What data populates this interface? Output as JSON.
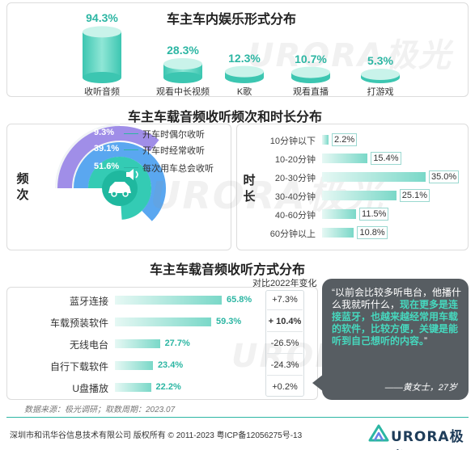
{
  "section1": {
    "title": "车主车内娱乐形式分布",
    "watermark": "URORA极光"
  },
  "section2": {
    "title": "车主车载音频收听频次和时长分布",
    "freq_label": "频次",
    "duration_label": "时长"
  },
  "section3": {
    "title": "车主车载音频收听方式分布",
    "compare_header": "对比2022年变化",
    "source": "数据来源：极光调研；取数周期：2023.07"
  },
  "quote": {
    "text_normal": "“以前会比较多听电台，他播什么我就听什么，",
    "text_bold": "现在更多是连接蓝牙，也越来越经常用车载的软件，比较方便，关键是能听到自己想听的内容。",
    "close": "”",
    "author": "——黄女士，27岁"
  },
  "footer": {
    "copyright": "深圳市和讯华谷信息技术有限公司 版权所有 © 2011-2023 粤ICP备12056275号-13",
    "logo": "URORA极光"
  },
  "colors": {
    "teal": "#2cb6a3",
    "teal_light": "#9ee5d9",
    "purple": "#a08ee8",
    "blue": "#5aa7f0",
    "green": "#34cbb4",
    "dark": "#575d62"
  },
  "chart_data": [
    {
      "type": "bar",
      "title": "车主车内娱乐形式分布",
      "categories": [
        "收听音频",
        "观看中长视频",
        "K歌",
        "观看直播",
        "打游戏"
      ],
      "values": [
        94.3,
        28.3,
        12.3,
        10.7,
        5.3
      ],
      "value_labels": [
        "94.3%",
        "28.3%",
        "12.3%",
        "10.7%",
        "5.3%"
      ],
      "ylim": [
        0,
        100
      ]
    },
    {
      "type": "pie",
      "title": "频次",
      "categories": [
        "开车时偶尔收听",
        "开车时经常收听",
        "每次用车总会收听"
      ],
      "values": [
        9.3,
        39.1,
        51.6
      ],
      "value_labels": [
        "9.3%",
        "39.1%",
        "51.6%"
      ]
    },
    {
      "type": "bar",
      "title": "时长",
      "categories": [
        "10分钟以下",
        "10-20分钟",
        "20-30分钟",
        "30-40分钟",
        "40-60分钟",
        "60分钟以上"
      ],
      "values": [
        2.2,
        15.4,
        35.0,
        25.1,
        11.5,
        10.8
      ],
      "value_labels": [
        "2.2%",
        "15.4%",
        "35.0%",
        "25.1%",
        "11.5%",
        "10.8%"
      ],
      "xlim": [
        0,
        35
      ]
    },
    {
      "type": "bar",
      "title": "车主车载音频收听方式分布",
      "categories": [
        "蓝牙连接",
        "车载预装软件",
        "无线电台",
        "自行下载软件",
        "U盘播放"
      ],
      "values": [
        65.8,
        59.3,
        27.7,
        23.4,
        22.2
      ],
      "value_labels": [
        "65.8%",
        "59.3%",
        "27.7%",
        "23.4%",
        "22.2%"
      ],
      "changes": [
        "+7.3%",
        "+ 10.4%",
        "-26.5%",
        "-24.3%",
        "+0.2%"
      ],
      "xlim": [
        0,
        65.8
      ]
    }
  ]
}
